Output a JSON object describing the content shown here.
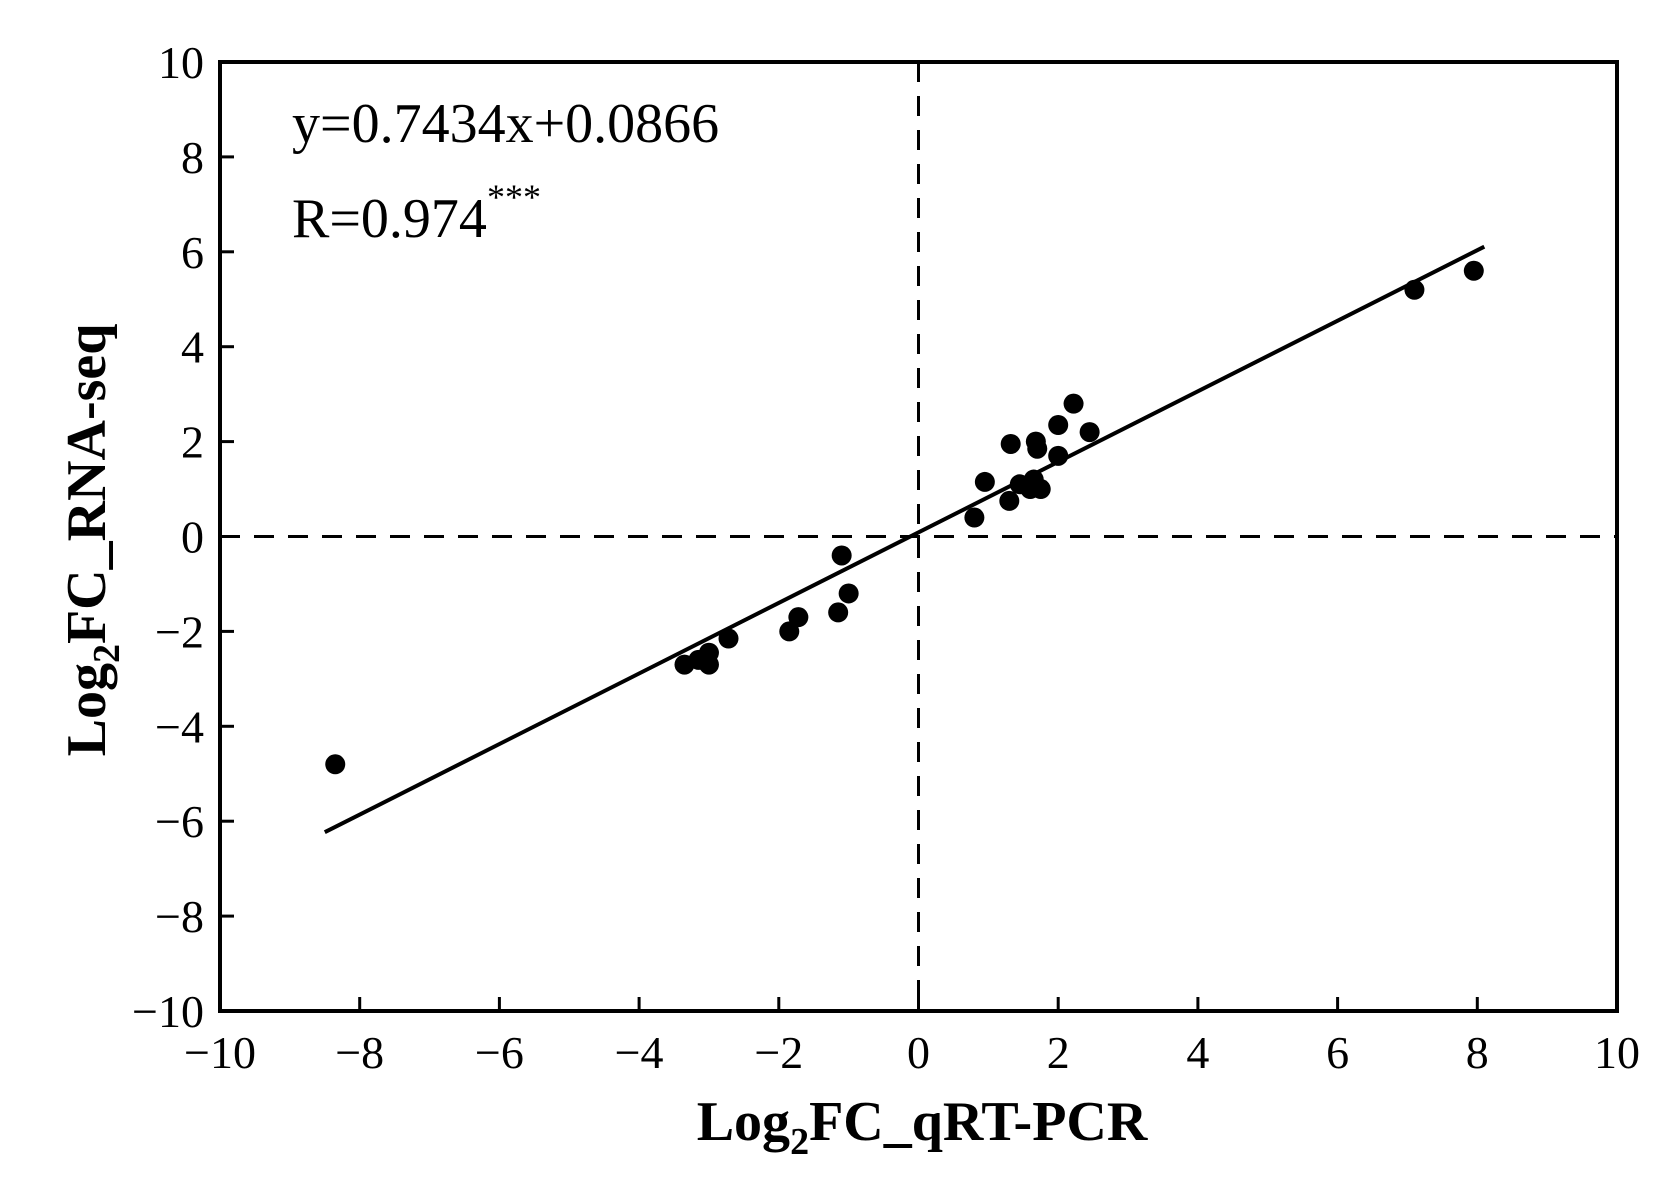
{
  "chart_data": {
    "type": "scatter",
    "title": "",
    "xlabel": {
      "prefix": "Log",
      "sub": "2",
      "suffix": "FC_qRT-PCR"
    },
    "ylabel": {
      "prefix": "Log",
      "sub": "2",
      "suffix": "FC_RNA-seq"
    },
    "xlim": [
      -10,
      10
    ],
    "ylim": [
      -10,
      10
    ],
    "xticks": [
      -10,
      -8,
      -6,
      -4,
      -2,
      0,
      2,
      4,
      6,
      8,
      10
    ],
    "yticks": [
      -10,
      -8,
      -6,
      -4,
      -2,
      0,
      2,
      4,
      6,
      8,
      10
    ],
    "grid": false,
    "reference_lines": {
      "x": 0,
      "y": 0,
      "style": "dashed"
    },
    "fit_line": {
      "slope": 0.7434,
      "intercept": 0.0866,
      "x_range": [
        -8.5,
        8.1
      ]
    },
    "annotations": {
      "equation": "y=0.7434x+0.0866",
      "r_text": "R=0.974",
      "r_sig": "***"
    },
    "point_color": "#000000",
    "points": [
      [
        -8.35,
        -4.8
      ],
      [
        -3.35,
        -2.7
      ],
      [
        -3.15,
        -2.6
      ],
      [
        -3.0,
        -2.7
      ],
      [
        -3.0,
        -2.45
      ],
      [
        -2.72,
        -2.15
      ],
      [
        -1.85,
        -2.0
      ],
      [
        -1.72,
        -1.7
      ],
      [
        -1.15,
        -1.6
      ],
      [
        -1.1,
        -0.4
      ],
      [
        -1.0,
        -1.2
      ],
      [
        0.8,
        0.4
      ],
      [
        0.95,
        1.15
      ],
      [
        1.3,
        0.75
      ],
      [
        1.32,
        1.95
      ],
      [
        1.45,
        1.1
      ],
      [
        1.6,
        1.0
      ],
      [
        1.65,
        1.2
      ],
      [
        1.68,
        2.0
      ],
      [
        1.7,
        1.85
      ],
      [
        1.75,
        1.0
      ],
      [
        2.0,
        1.7
      ],
      [
        2.0,
        2.35
      ],
      [
        2.22,
        2.8
      ],
      [
        2.45,
        2.2
      ],
      [
        7.1,
        5.2
      ],
      [
        7.95,
        5.6
      ]
    ]
  }
}
